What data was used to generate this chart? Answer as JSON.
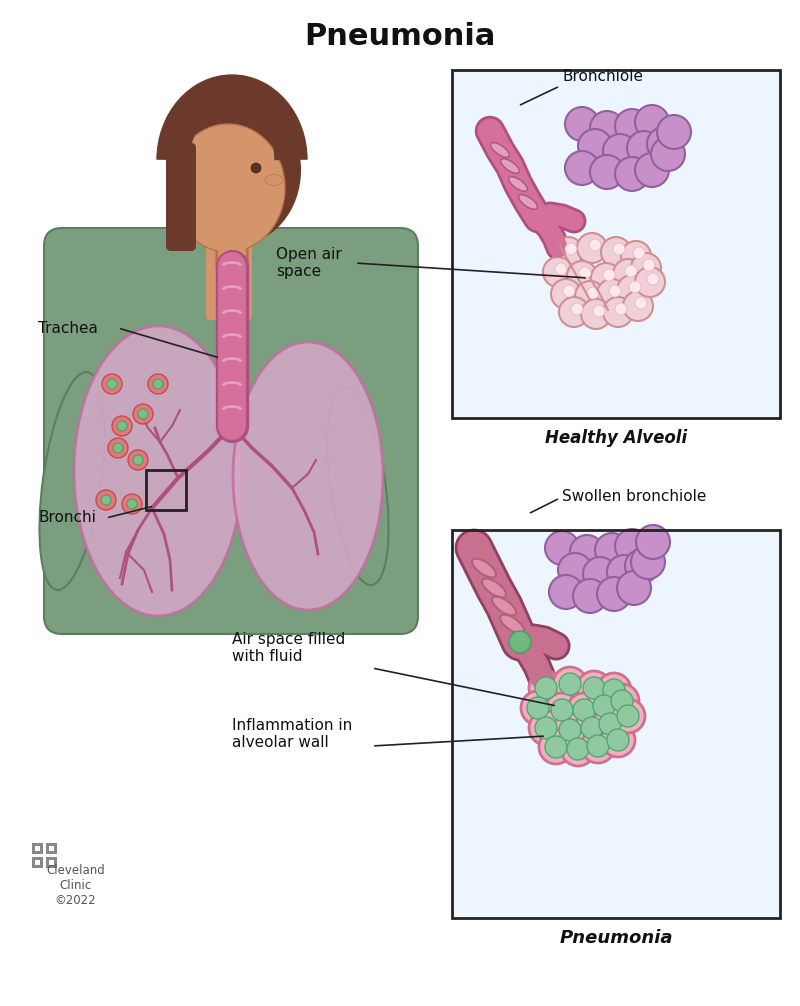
{
  "title": "Pneumonia",
  "title_fontsize": 22,
  "title_fontweight": "bold",
  "bg_color": "#ffffff",
  "labels": {
    "trachea": "Trachea",
    "bronchi": "Bronchi",
    "open_air_space": "Open air\nspace",
    "bronchiole": "Bronchiole",
    "swollen_bronchiole": "Swollen bronchiole",
    "air_space_fluid": "Air space filled\nwith fluid",
    "inflammation": "Inflammation in\nalveolar wall",
    "healthy_alveoli": "Healthy Alveoli",
    "pneumonia_label": "Pneumonia",
    "cleveland_clinic": "Cleveland\nClinic\n©2022"
  },
  "colors": {
    "skin_face": "#d4956a",
    "skin_dark": "#b87050",
    "hair": "#6b3a2a",
    "shirt": "#7a9e7e",
    "shirt_dark": "#5a7e5e",
    "lung_fill": "#d4a8c7",
    "lung_outline": "#c070a0",
    "trachea_fill": "#d4709a",
    "trachea_outline": "#b05080",
    "ring_fill": "#e0a0c0",
    "bronchi_color": "#b05080",
    "alveoli_purple_fill": "#c890c8",
    "alveoli_purple_out": "#9060a0",
    "alveoli_open_fill": "#f0d0d8",
    "alveoli_open_out": "#d09090",
    "alveoli_fluid_fill": "#90c8a0",
    "alveoli_fluid_out": "#50a870",
    "alveoli_sick_wall": "#f0b0c0",
    "alveoli_sick_wall_out": "#d07090",
    "bronchiole_sick_fill": "#c87090",
    "bronchiole_sick_out": "#904060",
    "ring_sick_fill": "#e090a8",
    "ring_sick_out": "#b06080",
    "mucus_fill": "#70b880",
    "mucus_out": "#40a060",
    "inflamed_out_fill": "#e87070",
    "inflamed_out_edge": "#c04040",
    "inflamed_in_fill": "#70c888",
    "inflamed_in_edge": "#40a060",
    "box_line": "#222222",
    "text_color": "#111111",
    "bg_box": "#ddeeff",
    "logo_color": "#888888"
  }
}
